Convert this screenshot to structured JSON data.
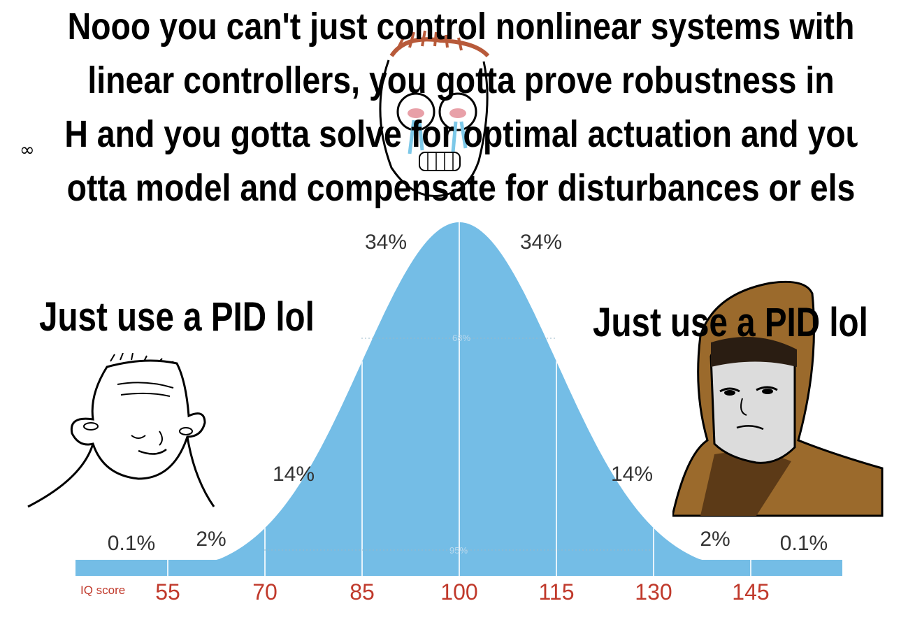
{
  "headline": "Nooo you can't just control nonlinear systems with\nlinear controllers, you gotta prove robustness in\nH and you gotta solve for optimal actuation and you\notta model and compensate for disturbances or els",
  "infinity_symbol": "∞",
  "left_caption": "Just use a PID lol",
  "right_caption": "Just use a PID lol",
  "chart_data": {
    "type": "area",
    "distribution": "normal",
    "x_label": "IQ score",
    "x_ticks": [
      55,
      70,
      85,
      100,
      115,
      130,
      145
    ],
    "mean": 100,
    "sd": 15,
    "band_percentages": [
      "0.1%",
      "2%",
      "14%",
      "34%",
      "34%",
      "14%",
      "2%",
      "0.1%"
    ],
    "range_labels": [
      "68%",
      "95%"
    ],
    "fill_color": "#74bde6",
    "tick_color": "#c0392b"
  },
  "characters": {
    "left": "wojak-icon",
    "center": "crying-soyjak-icon",
    "right": "hooded-wojak-icon"
  }
}
